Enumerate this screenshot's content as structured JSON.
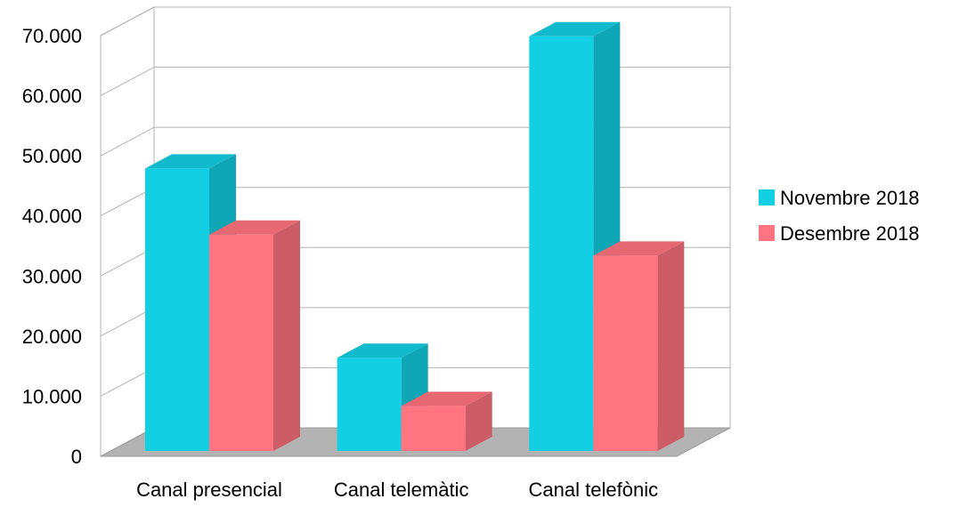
{
  "chart_data": {
    "type": "bar",
    "categories": [
      "Canal presencial",
      "Canal telemàtic",
      "Canal telefònic"
    ],
    "series": [
      {
        "name": "Novembre 2018",
        "values": [
          47000,
          15500,
          69000
        ],
        "color": "#13CFE3"
      },
      {
        "name": "Desembre 2018",
        "values": [
          36000,
          7500,
          32500
        ],
        "color": "#FF7480"
      }
    ],
    "yticks": [
      "0",
      "10.000",
      "20.000",
      "30.000",
      "40.000",
      "50.000",
      "60.000",
      "70.000"
    ],
    "ylim": [
      0,
      70000
    ],
    "grid": true,
    "legend_position": "right",
    "style": "3d"
  }
}
